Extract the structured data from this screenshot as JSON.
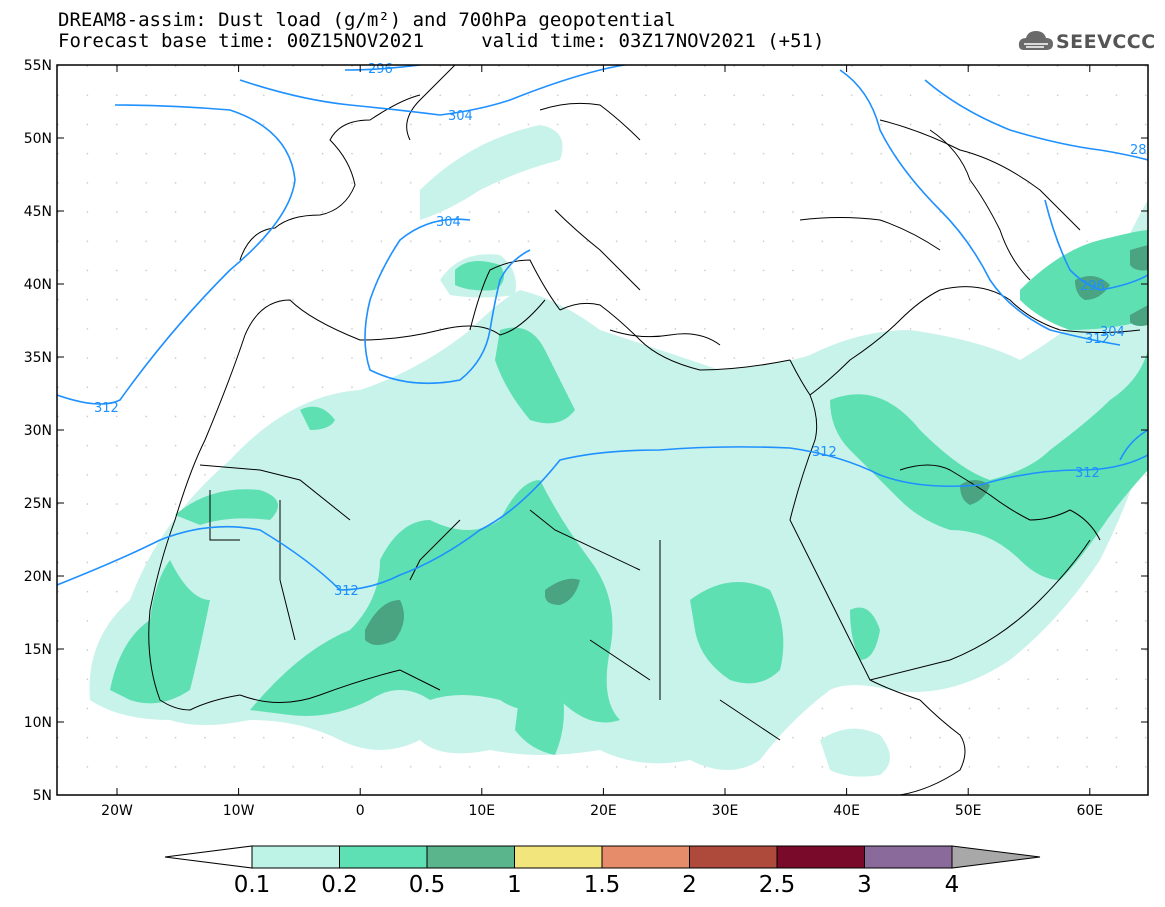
{
  "header": {
    "title_line1": "DREAM8-assim: Dust load (g/m²) and 700hPa geopotential",
    "title_line2": "Forecast base time: 00Z15NOV2021     valid time: 03Z17NOV2021 (+51)"
  },
  "logo": {
    "text": "SEEVCCC",
    "icon": "cloud-icon"
  },
  "map": {
    "lat_labels": [
      "55N",
      "50N",
      "45N",
      "40N",
      "35N",
      "30N",
      "25N",
      "20N",
      "15N",
      "10N",
      "5N"
    ],
    "lon_labels": [
      "20W",
      "10W",
      "0",
      "10E",
      "20E",
      "30E",
      "40E",
      "50E",
      "60E"
    ],
    "contour_labels": [
      "296",
      "304",
      "304",
      "312",
      "312",
      "312",
      "312",
      "312",
      "296",
      "304",
      "28"
    ]
  },
  "colorbar": {
    "labels": [
      "0.1",
      "0.2",
      "0.5",
      "1",
      "1.5",
      "2",
      "2.5",
      "3",
      "4"
    ],
    "colors": [
      "#ffffff",
      "#bdf2e6",
      "#5ee0b4",
      "#5ab48c",
      "#f2e57c",
      "#e68c6a",
      "#ad4a3c",
      "#7a0a2a",
      "#8a6a9a",
      "#a8a8a8"
    ]
  },
  "colors": {
    "contour": "#1e90ff",
    "coast": "#000000",
    "dust_light": "#c8f3ea",
    "dust_mid": "#5fe0b3",
    "dust_dark": "#4aa381"
  }
}
